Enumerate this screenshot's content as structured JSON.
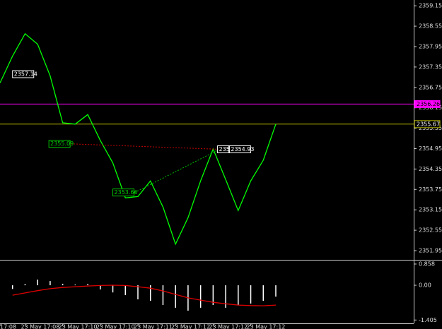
{
  "chart_data": [
    {
      "type": "line",
      "color": "#00ff00",
      "values": [
        2356.88,
        2357.67,
        2358.33,
        2358.02,
        2357.09,
        2355.71,
        2355.67,
        2355.95,
        2355.19,
        2354.53,
        2353.5,
        2353.54,
        2354.0,
        2353.23,
        2352.14,
        2352.92,
        2354.0,
        2354.94,
        2354.04,
        2353.13,
        2354.0,
        2354.61,
        2355.67
      ],
      "xlim": [
        0,
        33
      ],
      "ylim": [
        2351.68,
        2359.32
      ],
      "yticks": [
        2359.15,
        2358.55,
        2357.95,
        2357.35,
        2356.75,
        2356.15,
        2355.55,
        2354.95,
        2354.35,
        2353.75,
        2353.15,
        2352.55,
        2351.95
      ],
      "xticks": [
        {
          "value": 0,
          "label": "17:08"
        },
        {
          "value": 2,
          "label": "23 May 17:08"
        },
        {
          "value": 5,
          "label": "23 May 17:10"
        },
        {
          "value": 8,
          "label": "23 May 17:10"
        },
        {
          "value": 11,
          "label": "23 May 17:11"
        },
        {
          "value": 14,
          "label": "23 May 17:12"
        },
        {
          "value": 17,
          "label": "23 May 17:12"
        },
        {
          "value": 20,
          "label": "23 May 17:12"
        }
      ],
      "hlines": [
        {
          "value": 2356.26,
          "color": "#ff00ff"
        },
        {
          "value": 2355.67,
          "color": "#b5b500"
        }
      ],
      "annotations": [
        {
          "value": 2357.14,
          "x": 1,
          "color": "#ffffff"
        },
        {
          "value": 2355.09,
          "x": 3.9,
          "color": "#00c000"
        },
        {
          "value": 2353.66,
          "x": 9.0,
          "color": "#00c000"
        },
        {
          "value": 2354.93,
          "x": 17.35,
          "label": "2354",
          "color": "#ffffff"
        },
        {
          "value": 2354.93,
          "x": 18.3,
          "color": "#ffffff"
        }
      ]
    },
    {
      "type": "bar",
      "ylim": [
        -1.54,
        1.0
      ],
      "yticks": [
        0.858,
        {
          "value": 0,
          "label": "0.00"
        },
        -1.405
      ],
      "series": [
        {
          "color": "#ffffff",
          "values": [
            null,
            -0.15,
            0.05,
            0.23,
            0.17,
            0.06,
            0.03,
            0.05,
            -0.17,
            -0.29,
            -0.4,
            -0.57,
            -0.63,
            -0.8,
            -0.91,
            -1.03,
            -0.91,
            -0.8,
            -0.91,
            -0.8,
            -0.74,
            -0.63,
            -0.46
          ]
        },
        {
          "color": "#e00000",
          "values": [
            null,
            -0.4,
            -0.31,
            -0.22,
            -0.14,
            -0.09,
            -0.06,
            -0.03,
            -0.01,
            0,
            -0.01,
            -0.06,
            -0.12,
            -0.23,
            -0.37,
            -0.51,
            -0.6,
            -0.69,
            -0.75,
            -0.8,
            -0.82,
            -0.83,
            -0.8
          ]
        }
      ]
    }
  ]
}
